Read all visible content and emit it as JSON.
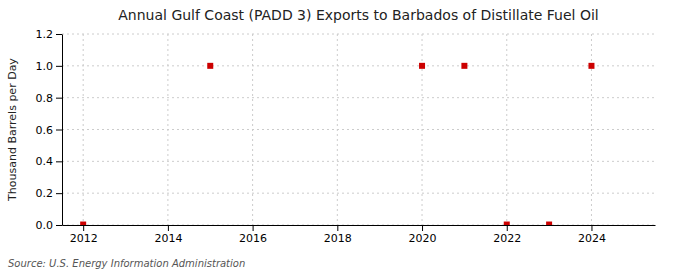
{
  "chart_data": {
    "type": "scatter",
    "title": "Annual Gulf Coast (PADD 3) Exports to Barbados of Distillate Fuel Oil",
    "ylabel": "Thousand Barrels per Day",
    "source": "Source: U.S. Energy Information Administration",
    "x": [
      2012,
      2015,
      2020,
      2021,
      2022,
      2023,
      2024
    ],
    "values": [
      0.003,
      1.0,
      1.0,
      1.0,
      0.003,
      0.003,
      1.0
    ],
    "color": "#cc0000",
    "marker": "square",
    "xlim": [
      2011.5,
      2025.5
    ],
    "ylim": [
      0.0,
      1.2
    ],
    "xticks": [
      2012,
      2014,
      2016,
      2018,
      2020,
      2022,
      2024
    ],
    "yticks": [
      {
        "value": 0.0,
        "label": "0.0"
      },
      0.2,
      0.4,
      0.6,
      0.8,
      {
        "value": 1.0,
        "label": "1.0"
      },
      1.2
    ],
    "grid": true
  }
}
